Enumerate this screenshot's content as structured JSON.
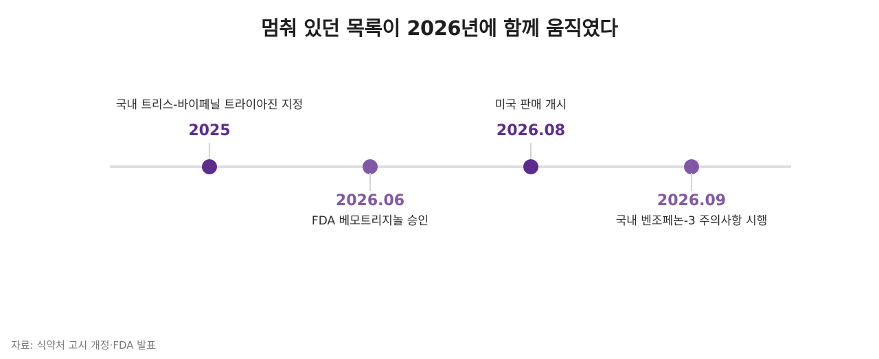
{
  "title": "멈춰 있던 목록이 2026년에 함께 움직였다",
  "colors": {
    "dark_purple": "#5c2d8c",
    "light_purple": "#8158a6",
    "axis_line": "#dedde2"
  },
  "events": [
    {
      "year": "2025",
      "description": "국내 트리스-바이페닐 트라이아진 지정",
      "color": "#5c2d8c"
    },
    {
      "year": "2026.06",
      "description": "FDA 베모트리지놀 승인",
      "color": "#8158a6"
    },
    {
      "year": "2026.08",
      "description": "미국 판매 개시",
      "color": "#5c2d8c"
    },
    {
      "year": "2026.09",
      "description": "국내 벤조페논-3 주의사항 시행",
      "color": "#8158a6"
    }
  ],
  "source": "자료: 식약처 고시 개정·FDA 발표"
}
